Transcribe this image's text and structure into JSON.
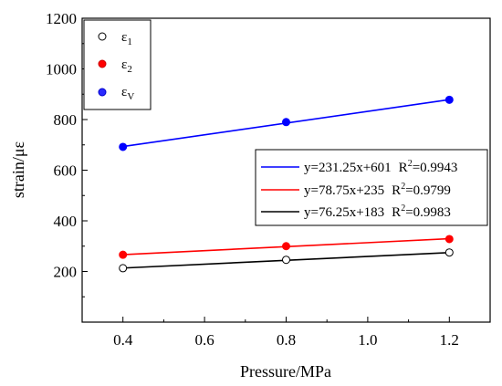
{
  "chart_data": {
    "type": "scatter",
    "xlabel": "Pressure/MPa",
    "ylabel": "strain/με",
    "xlim": [
      0.3,
      1.3
    ],
    "ylim": [
      0,
      1200
    ],
    "x_ticks": [
      0.4,
      0.6,
      0.8,
      1.0,
      1.2
    ],
    "x_tick_labels": [
      "0.4",
      "0.6",
      "0.8",
      "1.0",
      "1.2"
    ],
    "y_ticks": [
      200,
      400,
      600,
      800,
      1000,
      1200
    ],
    "y_tick_labels": [
      "200",
      "400",
      "600",
      "800",
      "1000",
      "1200"
    ],
    "grid": false,
    "series": [
      {
        "name": "ε",
        "subscript": "1",
        "marker": "open-circle",
        "color": "#000000",
        "x": [
          0.4,
          0.8,
          1.2
        ],
        "y": [
          213,
          246,
          275
        ]
      },
      {
        "name": "ε",
        "subscript": "2",
        "marker": "filled-circle",
        "color": "#ff0000",
        "x": [
          0.4,
          0.8,
          1.2
        ],
        "y": [
          266,
          300,
          328
        ]
      },
      {
        "name": "ε",
        "subscript": "V",
        "marker": "filled-circle",
        "color": "#0000ff",
        "x": [
          0.4,
          0.8,
          1.2
        ],
        "y": [
          692,
          790,
          878
        ]
      }
    ],
    "fits": [
      {
        "color": "#0000ff",
        "slope": 231.25,
        "intercept": 601,
        "equation": "y=231.25x+601",
        "r2_label": "R",
        "r2_sup": "2",
        "r2_value": "=0.9943"
      },
      {
        "color": "#ff0000",
        "slope": 78.75,
        "intercept": 235,
        "equation": "y=78.75x+235",
        "r2_label": "R",
        "r2_sup": "2",
        "r2_value": "=0.9799"
      },
      {
        "color": "#000000",
        "slope": 76.25,
        "intercept": 183,
        "equation": "y=76.25x+183",
        "r2_label": "R",
        "r2_sup": "2",
        "r2_value": "=0.9983"
      }
    ],
    "legend_markers_placement": "top-left",
    "legend_fits_placement": "center-right"
  }
}
